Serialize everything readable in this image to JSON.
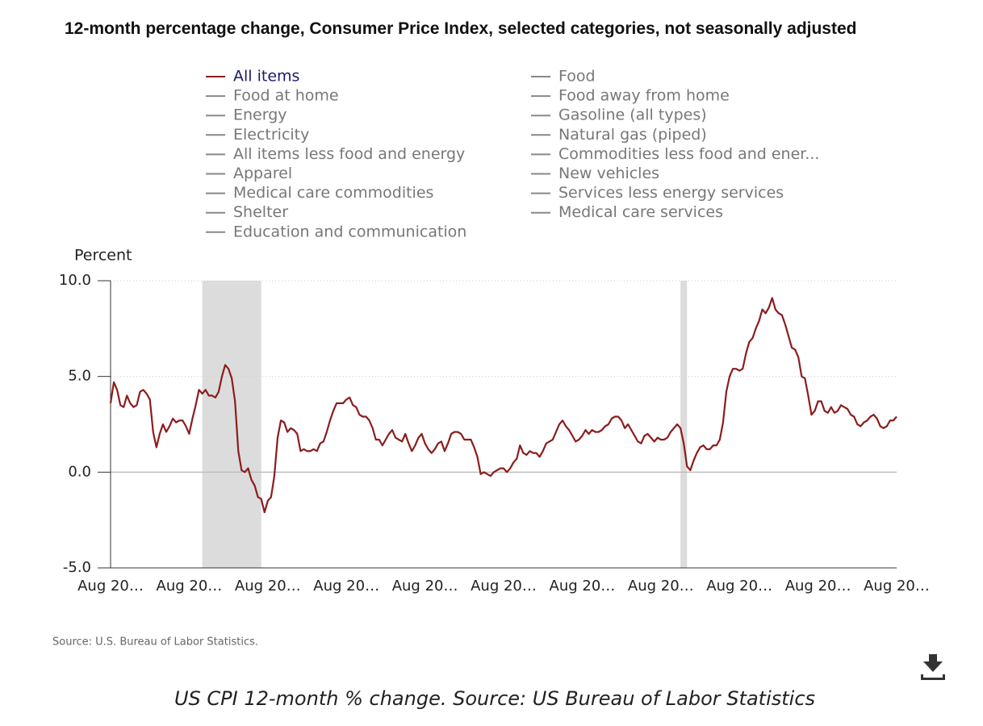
{
  "chart_data": {
    "type": "line",
    "title": "12-month percentage change, Consumer Price Index, selected categories, not seasonally adjusted",
    "y_label": "Percent",
    "source": "Source: U.S. Bureau of Labor Statistics.",
    "caption": "US CPI 12-month % change. Source: US Bureau of Labor Statistics",
    "categories": [
      "Aug 20…",
      null,
      null,
      null,
      null,
      null,
      null,
      null,
      null,
      null,
      null,
      null,
      null,
      null,
      null,
      null,
      null,
      null,
      null,
      null,
      null,
      null,
      null,
      null,
      "Aug 20…",
      null,
      null,
      null,
      null,
      null,
      null,
      null,
      null,
      null,
      null,
      null,
      null,
      null,
      null,
      null,
      null,
      null,
      null,
      null,
      null,
      null,
      null,
      null,
      "Aug 20…",
      null,
      null,
      null,
      null,
      null,
      null,
      null,
      null,
      null,
      null,
      null,
      null,
      null,
      null,
      null,
      null,
      null,
      null,
      null,
      null,
      null,
      null,
      null,
      "Aug 20…",
      null,
      null,
      null,
      null,
      null,
      null,
      null,
      null,
      null,
      null,
      null,
      null,
      null,
      null,
      null,
      null,
      null,
      null,
      null,
      null,
      null,
      null,
      null,
      "Aug 20…",
      null,
      null,
      null,
      null,
      null,
      null,
      null,
      null,
      null,
      null,
      null,
      null,
      null,
      null,
      null,
      null,
      null,
      null,
      null,
      null,
      null,
      null,
      null,
      "Aug 20…",
      null,
      null,
      null,
      null,
      null,
      null,
      null,
      null,
      null,
      null,
      null,
      null,
      null,
      null,
      null,
      null,
      null,
      null,
      null,
      null,
      null,
      null,
      null,
      "Aug 20…",
      null,
      null,
      null,
      null,
      null,
      null,
      null,
      null,
      null,
      null,
      null,
      null,
      null,
      null,
      null,
      null,
      null,
      null,
      null,
      null,
      null,
      null,
      null,
      "Aug 20…",
      null,
      null,
      null,
      null,
      null,
      null,
      null,
      null,
      null,
      null,
      null,
      null,
      null,
      null,
      null,
      null,
      null,
      null,
      null,
      null,
      null,
      null,
      null,
      "Aug 20…",
      null,
      null,
      null,
      null,
      null,
      null,
      null,
      null,
      null,
      null,
      null,
      null,
      null,
      null,
      null,
      null,
      null,
      null,
      null,
      null,
      null,
      null,
      null,
      "Aug 20…",
      null,
      null,
      null,
      null,
      null,
      null,
      null,
      null,
      null,
      null,
      null,
      null,
      null,
      null,
      null,
      null,
      null,
      null,
      null,
      null,
      null,
      null,
      null,
      "Aug 20…"
    ],
    "series": [
      {
        "name": "All items",
        "color": "#8b1d1d",
        "values": [
          3.6,
          4.7,
          4.3,
          3.5,
          3.4,
          4.0,
          3.6,
          3.4,
          3.5,
          4.2,
          4.3,
          4.1,
          3.8,
          2.1,
          1.3,
          2.0,
          2.5,
          2.1,
          2.4,
          2.8,
          2.6,
          2.7,
          2.7,
          2.4,
          2.0,
          2.8,
          3.5,
          4.3,
          4.1,
          4.3,
          4.0,
          4.0,
          3.9,
          4.2,
          5.0,
          5.6,
          5.4,
          4.9,
          3.7,
          1.1,
          0.1,
          0.0,
          0.2,
          -0.4,
          -0.7,
          -1.3,
          -1.4,
          -2.1,
          -1.5,
          -1.3,
          -0.2,
          1.8,
          2.7,
          2.6,
          2.1,
          2.3,
          2.2,
          2.0,
          1.1,
          1.2,
          1.1,
          1.1,
          1.2,
          1.1,
          1.5,
          1.6,
          2.1,
          2.7,
          3.2,
          3.6,
          3.6,
          3.6,
          3.8,
          3.9,
          3.5,
          3.4,
          3.0,
          2.9,
          2.9,
          2.7,
          2.3,
          1.7,
          1.7,
          1.4,
          1.7,
          2.0,
          2.2,
          1.8,
          1.7,
          1.6,
          2.0,
          1.5,
          1.1,
          1.4,
          1.8,
          2.0,
          1.5,
          1.2,
          1.0,
          1.2,
          1.5,
          1.6,
          1.1,
          1.5,
          2.0,
          2.1,
          2.1,
          2.0,
          1.7,
          1.7,
          1.7,
          1.3,
          0.8,
          -0.1,
          0.0,
          -0.1,
          -0.2,
          0.0,
          0.1,
          0.2,
          0.2,
          0.0,
          0.2,
          0.5,
          0.7,
          1.4,
          1.0,
          0.9,
          1.1,
          1.0,
          1.0,
          0.8,
          1.1,
          1.5,
          1.6,
          1.7,
          2.1,
          2.5,
          2.7,
          2.4,
          2.2,
          1.9,
          1.6,
          1.7,
          1.9,
          2.2,
          2.0,
          2.2,
          2.1,
          2.1,
          2.2,
          2.4,
          2.5,
          2.8,
          2.9,
          2.9,
          2.7,
          2.3,
          2.5,
          2.2,
          1.9,
          1.6,
          1.5,
          1.9,
          2.0,
          1.8,
          1.6,
          1.8,
          1.7,
          1.7,
          1.8,
          2.1,
          2.3,
          2.5,
          2.3,
          1.5,
          0.3,
          0.1,
          0.6,
          1.0,
          1.3,
          1.4,
          1.2,
          1.2,
          1.4,
          1.4,
          1.7,
          2.6,
          4.2,
          5.0,
          5.4,
          5.4,
          5.3,
          5.4,
          6.2,
          6.8,
          7.0,
          7.5,
          7.9,
          8.5,
          8.3,
          8.6,
          9.1,
          8.5,
          8.3,
          8.2,
          7.7,
          7.1,
          6.5,
          6.4,
          6.0,
          5.0,
          4.9,
          4.0,
          3.0,
          3.2,
          3.7,
          3.7,
          3.2,
          3.1,
          3.4,
          3.1,
          3.2,
          3.5,
          3.4,
          3.3,
          3.0,
          2.9,
          2.5,
          2.4,
          2.6,
          2.7,
          2.9,
          3.0,
          2.8,
          2.4,
          2.3,
          2.4,
          2.7,
          2.7,
          2.9
        ]
      },
      {
        "name": "Food at home",
        "color": "#888888"
      },
      {
        "name": "Energy",
        "color": "#888888"
      },
      {
        "name": "Electricity",
        "color": "#888888"
      },
      {
        "name": "All items less food and energy",
        "color": "#888888"
      },
      {
        "name": "Apparel",
        "color": "#888888"
      },
      {
        "name": "Medical care commodities",
        "color": "#888888"
      },
      {
        "name": "Shelter",
        "color": "#888888"
      },
      {
        "name": "Education and communication",
        "color": "#888888"
      },
      {
        "name": "Food",
        "color": "#888888"
      },
      {
        "name": "Food away from home",
        "color": "#888888"
      },
      {
        "name": "Gasoline (all types)",
        "color": "#888888"
      },
      {
        "name": "Natural gas (piped)",
        "color": "#888888"
      },
      {
        "name": "Commodities less food and ener...",
        "color": "#888888"
      },
      {
        "name": "New vehicles",
        "color": "#888888"
      },
      {
        "name": "Services less energy services",
        "color": "#888888"
      },
      {
        "name": "Medical care services",
        "color": "#888888"
      }
    ],
    "recessions": [
      {
        "start": 28,
        "end": 46
      },
      {
        "start": 174,
        "end": 176
      }
    ],
    "ylim": [
      -5,
      10
    ],
    "yticks": [
      {
        "value": -5,
        "label": "-5.0"
      },
      {
        "value": 0,
        "label": "0.0"
      },
      {
        "value": 5,
        "label": "5.0"
      },
      {
        "value": 10,
        "label": "10.0"
      }
    ],
    "grid": true
  }
}
